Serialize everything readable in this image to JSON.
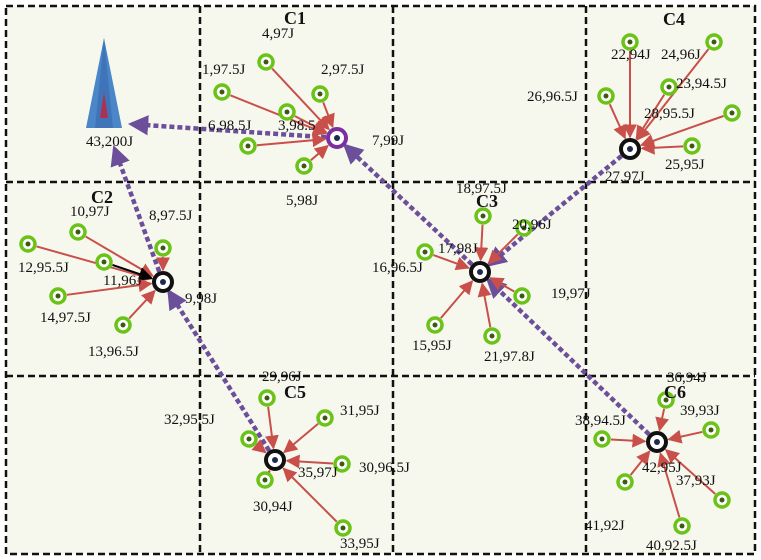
{
  "colors": {
    "background": "#f6f8ee",
    "grid": "#111111",
    "node_ring": "#6cc318",
    "head_ring": "#111111",
    "head_ring_c1": "#7b2fa0",
    "head_center": "#1e2a4a",
    "member_arrow": "#c9504a",
    "route_arrow": "#6b4f9a",
    "black_arrow": "#000000",
    "sink_blue": "#4a86c8",
    "sink_red": "#b03050"
  },
  "sink": {
    "label": "43,200J",
    "icon": "sink-triangle-icon"
  },
  "clusters": [
    {
      "id": "C1",
      "label": "C1",
      "head": {
        "label": "7,99J"
      },
      "members": [
        {
          "label": "4,97J"
        },
        {
          "label": "1,97.5J"
        },
        {
          "label": "2,97.5J"
        },
        {
          "label": "6,98.5J"
        },
        {
          "label": "3,98.5"
        },
        {
          "label": "5,98J"
        }
      ]
    },
    {
      "id": "C2",
      "label": "C2",
      "head": {
        "label": "9,98J"
      },
      "members": [
        {
          "label": "10,97J"
        },
        {
          "label": "8,97.5J"
        },
        {
          "label": "12,95.5J"
        },
        {
          "label": "11,96J"
        },
        {
          "label": "14,97.5J"
        },
        {
          "label": "13,96.5J"
        }
      ]
    },
    {
      "id": "C3",
      "label": "C3",
      "head": {
        "label": "17,98J"
      },
      "members": [
        {
          "label": "18,97.5J"
        },
        {
          "label": "20,96J"
        },
        {
          "label": "16,96.5J"
        },
        {
          "label": "19,97J"
        },
        {
          "label": "15,95J"
        },
        {
          "label": "21,97.8J"
        }
      ]
    },
    {
      "id": "C4",
      "label": "C4",
      "head": {
        "label": "27,97J"
      },
      "members": [
        {
          "label": "22,94J"
        },
        {
          "label": "24,96J"
        },
        {
          "label": "26,96.5J"
        },
        {
          "label": "23,94.5J"
        },
        {
          "label": "28,95.5J"
        },
        {
          "label": "25,95J"
        }
      ]
    },
    {
      "id": "C5",
      "label": "C5",
      "head": {
        "label": "35,97J"
      },
      "members": [
        {
          "label": "29,96J"
        },
        {
          "label": "31,95J"
        },
        {
          "label": "32,95.5J"
        },
        {
          "label": "30,96.5J"
        },
        {
          "label": "30,94J"
        },
        {
          "label": "33,95J"
        }
      ]
    },
    {
      "id": "C6",
      "label": "C6",
      "head": {
        "label": "42,95J"
      },
      "members": [
        {
          "label": "36,94J"
        },
        {
          "label": "39,93J"
        },
        {
          "label": "38,94.5J"
        },
        {
          "label": "37,93J"
        },
        {
          "label": "41,92J"
        },
        {
          "label": "40,92.5J"
        }
      ]
    }
  ]
}
